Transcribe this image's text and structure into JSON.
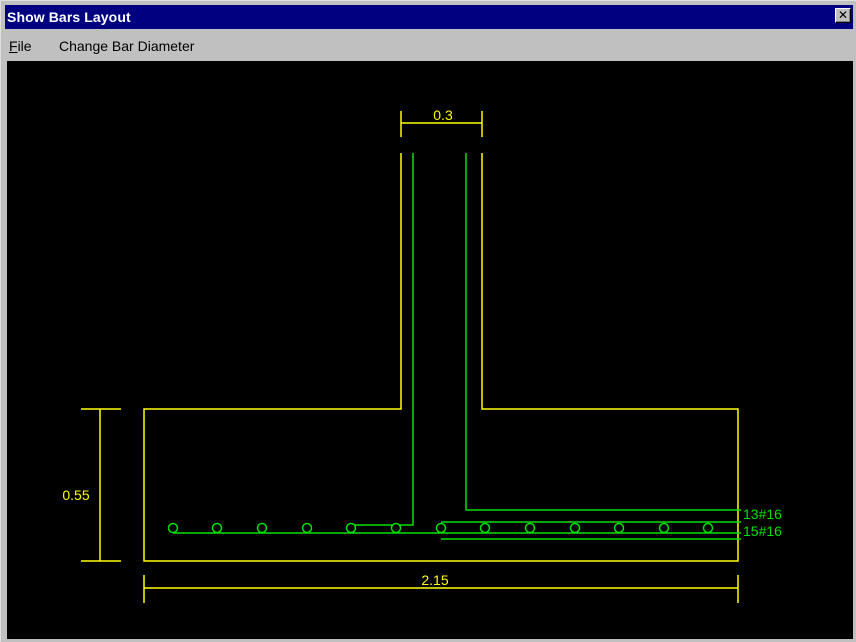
{
  "window": {
    "title": "Show Bars Layout",
    "close_glyph": "✕"
  },
  "menu": {
    "file_accel": "F",
    "file_rest": "ile",
    "change_bar_diameter": "Change Bar Diameter"
  },
  "drawing": {
    "dims": {
      "column_width": "0.3",
      "footing_depth": "0.55",
      "footing_width": "2.15"
    },
    "bar_labels": {
      "top_layer": "13#16",
      "bottom_layer": "15#16"
    },
    "colors": {
      "outline": "#ffff00",
      "bars": "#00e000",
      "background": "#000000"
    }
  }
}
